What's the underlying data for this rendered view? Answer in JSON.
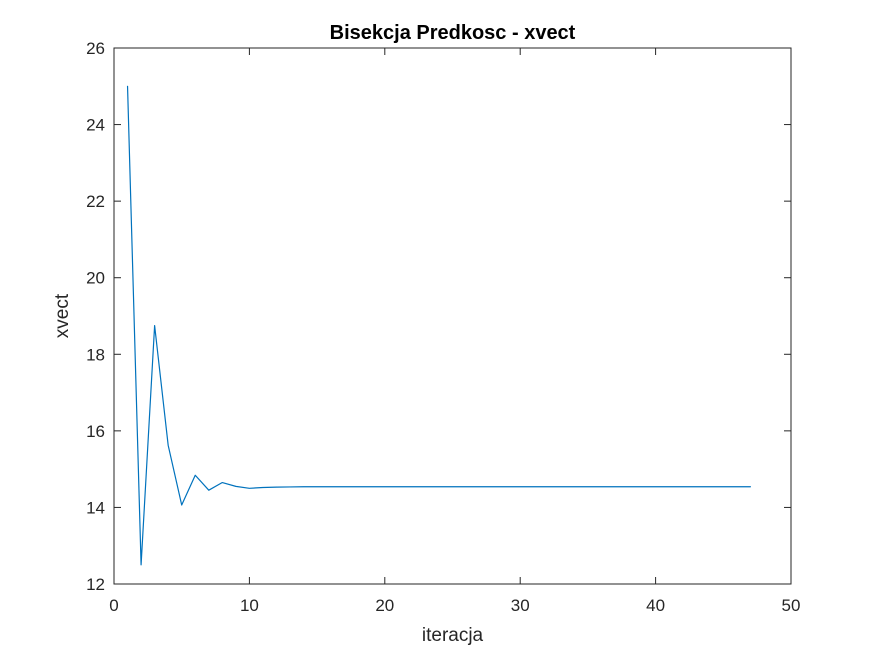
{
  "chart_data": {
    "type": "line",
    "title": "Bisekcja Predkosc - xvect",
    "xlabel": "iteracja",
    "ylabel": "xvect",
    "xlim": [
      0,
      50
    ],
    "ylim": [
      12,
      26
    ],
    "xticks": [
      0,
      10,
      20,
      30,
      40,
      50
    ],
    "yticks": [
      12,
      14,
      16,
      18,
      20,
      22,
      24,
      26
    ],
    "grid": false,
    "box": true,
    "series": [
      {
        "name": "xvect",
        "color": "#0072BD",
        "x": [
          1,
          2,
          3,
          4,
          5,
          6,
          7,
          8,
          9,
          10,
          11,
          12,
          13,
          14,
          15,
          16,
          17,
          18,
          19,
          20,
          21,
          22,
          23,
          24,
          25,
          26,
          27,
          28,
          29,
          30,
          31,
          32,
          33,
          34,
          35,
          36,
          37,
          38,
          39,
          40,
          41,
          42,
          43,
          44,
          45,
          46,
          47
        ],
        "y": [
          25.0,
          12.5,
          18.75,
          15.625,
          14.0625,
          14.84,
          14.45,
          14.65,
          14.55,
          14.5,
          14.52,
          14.53,
          14.535,
          14.54,
          14.54,
          14.54,
          14.54,
          14.54,
          14.54,
          14.54,
          14.54,
          14.54,
          14.54,
          14.54,
          14.54,
          14.54,
          14.54,
          14.54,
          14.54,
          14.54,
          14.54,
          14.54,
          14.54,
          14.54,
          14.54,
          14.54,
          14.54,
          14.54,
          14.54,
          14.54,
          14.54,
          14.54,
          14.54,
          14.54,
          14.54,
          14.54,
          14.54
        ]
      }
    ]
  }
}
